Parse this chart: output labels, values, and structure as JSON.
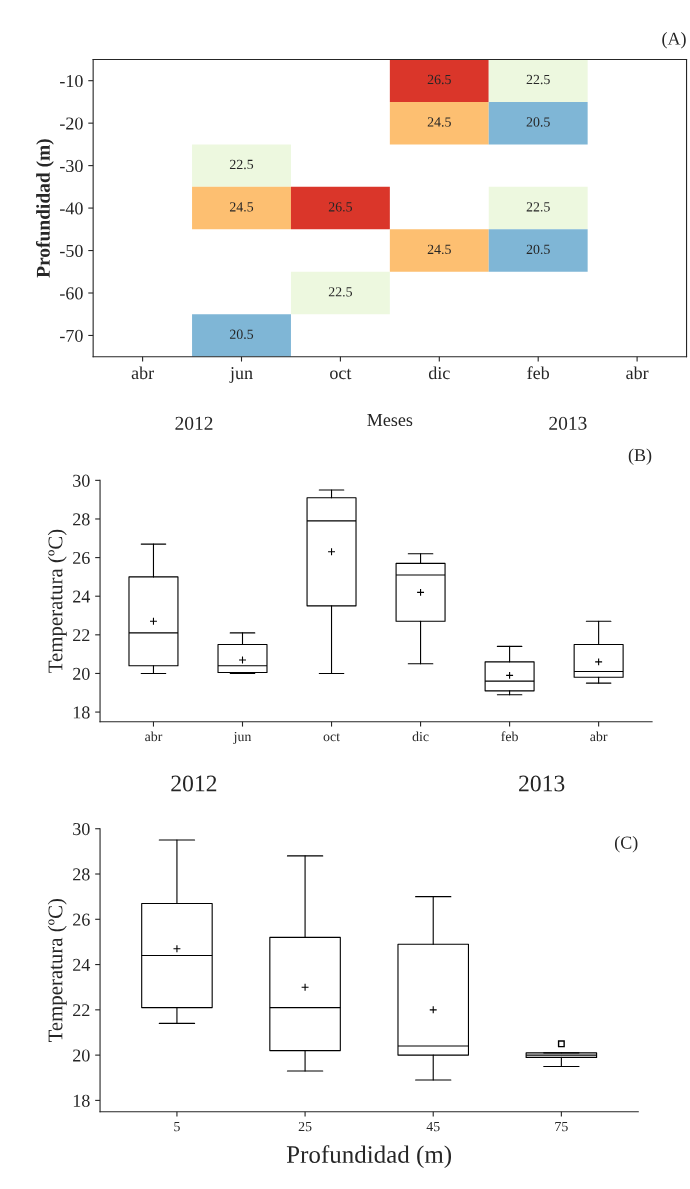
{
  "chart_data": [
    {
      "type": "heatmap",
      "ylabel": "Profundidad (m)",
      "xlabel": "Meses",
      "categories": [
        "abr",
        "jun",
        "oct",
        "dic",
        "feb",
        "abr"
      ],
      "y_categories": [
        "-10",
        "-20",
        "-30",
        "-40",
        "-50",
        "-60",
        "-70"
      ],
      "data_labels": true,
      "cells": [
        [
          null,
          null,
          null,
          26.5,
          22.5,
          null
        ],
        [
          null,
          null,
          null,
          24.5,
          20.5,
          null
        ],
        [
          null,
          22.5,
          null,
          null,
          null,
          null
        ],
        [
          null,
          24.5,
          26.5,
          null,
          22.5,
          null
        ],
        [
          null,
          null,
          null,
          24.5,
          20.5,
          null
        ],
        [
          null,
          null,
          22.5,
          null,
          null,
          null
        ],
        [
          null,
          20.5,
          null,
          null,
          null,
          null
        ]
      ],
      "annotations": [
        "(A)",
        "2012",
        "2013"
      ]
    },
    {
      "type": "box",
      "ylabel": "Temperatura (ºC)",
      "categories": [
        "abr",
        "jun",
        "oct",
        "dic",
        "feb",
        "abr"
      ],
      "ylim": [
        17.5,
        30
      ],
      "yticks": [
        18,
        20,
        22,
        24,
        26,
        28,
        30
      ],
      "annotations": [
        "(B)",
        "2012",
        "2013"
      ],
      "boxes": [
        {
          "low": 20.0,
          "q1": 20.4,
          "median": 22.1,
          "q3": 25.0,
          "high": 26.7,
          "mean": 22.7
        },
        {
          "low": 20.0,
          "q1": 20.05,
          "median": 20.4,
          "q3": 21.5,
          "high": 22.1,
          "mean": 20.7
        },
        {
          "low": 20.0,
          "q1": 23.5,
          "median": 27.9,
          "q3": 29.1,
          "high": 29.5,
          "mean": 26.3
        },
        {
          "low": 20.5,
          "q1": 22.7,
          "median": 25.1,
          "q3": 25.7,
          "high": 26.2,
          "mean": 24.2
        },
        {
          "low": 18.9,
          "q1": 19.1,
          "median": 19.6,
          "q3": 20.6,
          "high": 21.4,
          "mean": 19.9
        },
        {
          "low": 19.5,
          "q1": 19.8,
          "median": 20.1,
          "q3": 21.5,
          "high": 22.7,
          "mean": 20.6
        }
      ]
    },
    {
      "type": "box",
      "ylabel": "Temperatura (ºC)",
      "xlabel": "Profundidad (m)",
      "categories": [
        "5",
        "25",
        "45",
        "75"
      ],
      "ylim": [
        17.5,
        30
      ],
      "yticks": [
        18,
        20,
        22,
        24,
        26,
        28,
        30
      ],
      "annotations": [
        "(C)"
      ],
      "boxes": [
        {
          "low": 21.4,
          "q1": 22.1,
          "median": 24.4,
          "q3": 26.7,
          "high": 29.5,
          "mean": 24.7
        },
        {
          "low": 19.3,
          "q1": 20.2,
          "median": 22.1,
          "q3": 25.2,
          "high": 28.8,
          "mean": 23.0
        },
        {
          "low": 18.9,
          "q1": 20.0,
          "median": 20.4,
          "q3": 24.9,
          "high": 27.0,
          "mean": 22.0
        },
        {
          "low": 19.5,
          "q1": 19.9,
          "median": 20.0,
          "q3": 20.1,
          "high": 20.1,
          "outliers": [
            20.5
          ]
        }
      ]
    }
  ]
}
